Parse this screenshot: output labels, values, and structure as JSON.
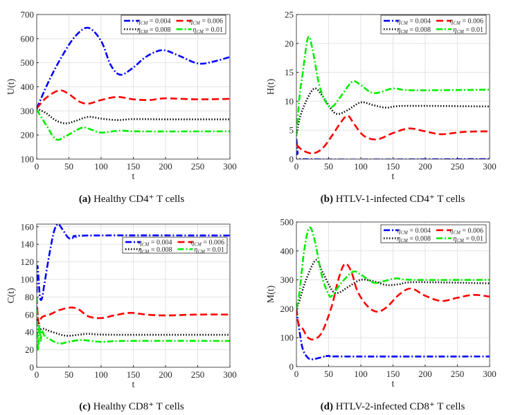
{
  "colors": {
    "s004": "#0000ff",
    "s006": "#ff0000",
    "s008": "#000000",
    "s01": "#00ee00"
  },
  "chart_data": [
    {
      "type": "line",
      "id": "a",
      "caption_label": "(a)",
      "caption_text": "Healthy CD4⁺ T cells",
      "xlabel": "t",
      "ylabel": "U(t)",
      "xlim": [
        0,
        300
      ],
      "ylim": [
        100,
        700
      ],
      "xticks": [
        0,
        50,
        100,
        150,
        200,
        250,
        300
      ],
      "yticks": [
        100,
        200,
        300,
        400,
        500,
        600,
        700
      ],
      "grid": true,
      "legend_position": "top-right",
      "series": [
        {
          "name": "ηCM = 0.004",
          "color_key": "s004",
          "style": "dashdot",
          "points": [
            [
              0,
              310
            ],
            [
              20,
              430
            ],
            [
              40,
              530
            ],
            [
              60,
              610
            ],
            [
              80,
              645
            ],
            [
              100,
              590
            ],
            [
              115,
              490
            ],
            [
              130,
              450
            ],
            [
              150,
              480
            ],
            [
              170,
              525
            ],
            [
              195,
              552
            ],
            [
              220,
              530
            ],
            [
              250,
              497
            ],
            [
              275,
              505
            ],
            [
              300,
              524
            ]
          ]
        },
        {
          "name": "ηCM = 0.006",
          "color_key": "s006",
          "style": "dash",
          "points": [
            [
              0,
              310
            ],
            [
              15,
              355
            ],
            [
              35,
              385
            ],
            [
              50,
              370
            ],
            [
              65,
              340
            ],
            [
              80,
              330
            ],
            [
              100,
              345
            ],
            [
              125,
              358
            ],
            [
              150,
              348
            ],
            [
              175,
              345
            ],
            [
              200,
              352
            ],
            [
              250,
              348
            ],
            [
              300,
              350
            ]
          ]
        },
        {
          "name": "ηCM = 0.008",
          "color_key": "s008",
          "style": "dot",
          "points": [
            [
              0,
              310
            ],
            [
              15,
              290
            ],
            [
              30,
              260
            ],
            [
              45,
              248
            ],
            [
              60,
              258
            ],
            [
              80,
              275
            ],
            [
              100,
              268
            ],
            [
              125,
              262
            ],
            [
              150,
              266
            ],
            [
              200,
              265
            ],
            [
              300,
              265
            ]
          ]
        },
        {
          "name": "ηCM = 0.01",
          "color_key": "s01",
          "style": "dashdot",
          "points": [
            [
              0,
              305
            ],
            [
              15,
              240
            ],
            [
              30,
              182
            ],
            [
              45,
              195
            ],
            [
              70,
              230
            ],
            [
              85,
              222
            ],
            [
              100,
              210
            ],
            [
              130,
              218
            ],
            [
              160,
              215
            ],
            [
              300,
              215
            ]
          ]
        }
      ]
    },
    {
      "type": "line",
      "id": "b",
      "caption_label": "(b)",
      "caption_text": "HTLV-1-infected CD4⁺ T cells",
      "xlabel": "t",
      "ylabel": "H(t)",
      "xlim": [
        0,
        300
      ],
      "ylim": [
        0,
        25
      ],
      "xticks": [
        0,
        50,
        100,
        150,
        200,
        250,
        300
      ],
      "yticks": [
        0,
        5,
        10,
        15,
        20,
        25
      ],
      "grid": true,
      "legend_position": "top-right",
      "series": [
        {
          "name": "ηCM = 0.004",
          "color_key": "s004",
          "style": "dashdot",
          "points": [
            [
              0,
              3.5
            ],
            [
              2,
              1
            ],
            [
              4,
              0
            ],
            [
              300,
              0
            ]
          ]
        },
        {
          "name": "ηCM = 0.006",
          "color_key": "s006",
          "style": "dash",
          "points": [
            [
              0,
              2.5
            ],
            [
              10,
              1.5
            ],
            [
              25,
              1
            ],
            [
              40,
              1.8
            ],
            [
              55,
              4
            ],
            [
              70,
              6.5
            ],
            [
              80,
              7.5
            ],
            [
              90,
              6
            ],
            [
              105,
              4
            ],
            [
              125,
              3.4
            ],
            [
              150,
              4.5
            ],
            [
              175,
              5.3
            ],
            [
              200,
              4.8
            ],
            [
              225,
              4.3
            ],
            [
              260,
              4.7
            ],
            [
              300,
              4.8
            ]
          ]
        },
        {
          "name": "ηCM = 0.008",
          "color_key": "s008",
          "style": "dot",
          "points": [
            [
              0,
              4
            ],
            [
              5,
              7
            ],
            [
              15,
              10
            ],
            [
              28,
              12.2
            ],
            [
              40,
              11
            ],
            [
              55,
              8.5
            ],
            [
              65,
              7.8
            ],
            [
              80,
              8.5
            ],
            [
              100,
              9.8
            ],
            [
              120,
              9.3
            ],
            [
              140,
              8.9
            ],
            [
              170,
              9.2
            ],
            [
              300,
              9.1
            ]
          ]
        },
        {
          "name": "ηCM = 0.01",
          "color_key": "s01",
          "style": "dashdot",
          "points": [
            [
              0,
              4
            ],
            [
              5,
              11
            ],
            [
              10,
              15
            ],
            [
              18,
              21
            ],
            [
              25,
              19
            ],
            [
              35,
              13
            ],
            [
              45,
              10
            ],
            [
              55,
              9
            ],
            [
              70,
              11
            ],
            [
              87,
              13.4
            ],
            [
              100,
              12.8
            ],
            [
              120,
              11.4
            ],
            [
              150,
              12.2
            ],
            [
              180,
              11.9
            ],
            [
              300,
              12
            ]
          ]
        }
      ]
    },
    {
      "type": "line",
      "id": "c",
      "caption_label": "(c)",
      "caption_text": "Healthy CD8⁺ T cells",
      "xlabel": "t",
      "ylabel": "C(t)",
      "xlim": [
        0,
        300
      ],
      "ylim": [
        0,
        163
      ],
      "xticks": [
        0,
        50,
        100,
        150,
        200,
        250,
        300
      ],
      "yticks": [
        0,
        20,
        40,
        60,
        80,
        100,
        120,
        140,
        160
      ],
      "grid": true,
      "legend_position": "upper-right",
      "series": [
        {
          "name": "ηCM = 0.004",
          "color_key": "s004",
          "style": "dashdot",
          "points": [
            [
              0,
              85
            ],
            [
              1,
              115
            ],
            [
              3,
              100
            ],
            [
              5,
              80
            ],
            [
              8,
              78
            ],
            [
              12,
              95
            ],
            [
              20,
              130
            ],
            [
              27,
              155
            ],
            [
              33,
              163
            ],
            [
              40,
              157
            ],
            [
              50,
              147
            ],
            [
              60,
              148
            ],
            [
              80,
              150
            ],
            [
              300,
              150
            ]
          ]
        },
        {
          "name": "ηCM = 0.006",
          "color_key": "s006",
          "style": "dash",
          "points": [
            [
              0,
              80
            ],
            [
              2,
              55
            ],
            [
              4,
              50
            ],
            [
              8,
              57
            ],
            [
              20,
              60
            ],
            [
              35,
              65
            ],
            [
              52,
              68
            ],
            [
              65,
              66
            ],
            [
              80,
              58
            ],
            [
              100,
              56
            ],
            [
              120,
              59
            ],
            [
              145,
              62
            ],
            [
              170,
              60
            ],
            [
              200,
              59
            ],
            [
              250,
              60
            ],
            [
              300,
              60
            ]
          ]
        },
        {
          "name": "ηCM = 0.008",
          "color_key": "s008",
          "style": "dot",
          "points": [
            [
              0,
              70
            ],
            [
              3,
              45
            ],
            [
              10,
              44
            ],
            [
              25,
              40
            ],
            [
              45,
              36
            ],
            [
              65,
              37
            ],
            [
              80,
              38
            ],
            [
              120,
              37
            ],
            [
              300,
              37
            ]
          ]
        },
        {
          "name": "ηCM = 0.01",
          "color_key": "s01",
          "style": "dashdot",
          "points": [
            [
              0,
              80
            ],
            [
              2,
              20
            ],
            [
              4,
              48
            ],
            [
              6,
              30
            ],
            [
              8,
              42
            ],
            [
              12,
              36
            ],
            [
              20,
              32
            ],
            [
              35,
              27
            ],
            [
              50,
              29
            ],
            [
              70,
              31
            ],
            [
              100,
              29
            ],
            [
              140,
              30
            ],
            [
              300,
              30
            ]
          ]
        }
      ]
    },
    {
      "type": "line",
      "id": "d",
      "caption_label": "(d)",
      "caption_text": "HTLV-2-infected CD8⁺ T cells",
      "xlabel": "t",
      "ylabel": "M(t)",
      "xlim": [
        0,
        300
      ],
      "ylim": [
        0,
        500
      ],
      "xticks": [
        0,
        50,
        100,
        150,
        200,
        250,
        300
      ],
      "yticks": [
        0,
        100,
        200,
        300,
        400,
        500
      ],
      "grid": true,
      "legend_position": "top-right",
      "series": [
        {
          "name": "ηCM = 0.004",
          "color_key": "s004",
          "style": "dashdot",
          "points": [
            [
              0,
              200
            ],
            [
              5,
              120
            ],
            [
              10,
              60
            ],
            [
              18,
              30
            ],
            [
              25,
              25
            ],
            [
              35,
              30
            ],
            [
              50,
              37
            ],
            [
              70,
              35
            ],
            [
              300,
              35
            ]
          ]
        },
        {
          "name": "ηCM = 0.006",
          "color_key": "s006",
          "style": "dash",
          "points": [
            [
              0,
              200
            ],
            [
              3,
              150
            ],
            [
              10,
              130
            ],
            [
              18,
              100
            ],
            [
              28,
              95
            ],
            [
              40,
              120
            ],
            [
              55,
              210
            ],
            [
              65,
              300
            ],
            [
              75,
              355
            ],
            [
              85,
              330
            ],
            [
              95,
              260
            ],
            [
              110,
              210
            ],
            [
              125,
              190
            ],
            [
              140,
              205
            ],
            [
              160,
              250
            ],
            [
              178,
              270
            ],
            [
              200,
              245
            ],
            [
              225,
              227
            ],
            [
              250,
              238
            ],
            [
              275,
              248
            ],
            [
              300,
              242
            ]
          ]
        },
        {
          "name": "ηCM = 0.008",
          "color_key": "s008",
          "style": "dot",
          "points": [
            [
              0,
              200
            ],
            [
              5,
              230
            ],
            [
              15,
              300
            ],
            [
              30,
              368
            ],
            [
              40,
              330
            ],
            [
              55,
              265
            ],
            [
              65,
              255
            ],
            [
              80,
              275
            ],
            [
              100,
              300
            ],
            [
              120,
              295
            ],
            [
              140,
              282
            ],
            [
              160,
              285
            ],
            [
              185,
              292
            ],
            [
              300,
              288
            ]
          ]
        },
        {
          "name": "ηCM = 0.01",
          "color_key": "s01",
          "style": "dashdot",
          "points": [
            [
              0,
              200
            ],
            [
              5,
              260
            ],
            [
              12,
              400
            ],
            [
              20,
              480
            ],
            [
              28,
              440
            ],
            [
              40,
              310
            ],
            [
              50,
              250
            ],
            [
              55,
              245
            ],
            [
              70,
              290
            ],
            [
              88,
              328
            ],
            [
              100,
              318
            ],
            [
              120,
              290
            ],
            [
              135,
              295
            ],
            [
              155,
              305
            ],
            [
              180,
              300
            ],
            [
              300,
              300
            ]
          ]
        }
      ]
    }
  ]
}
